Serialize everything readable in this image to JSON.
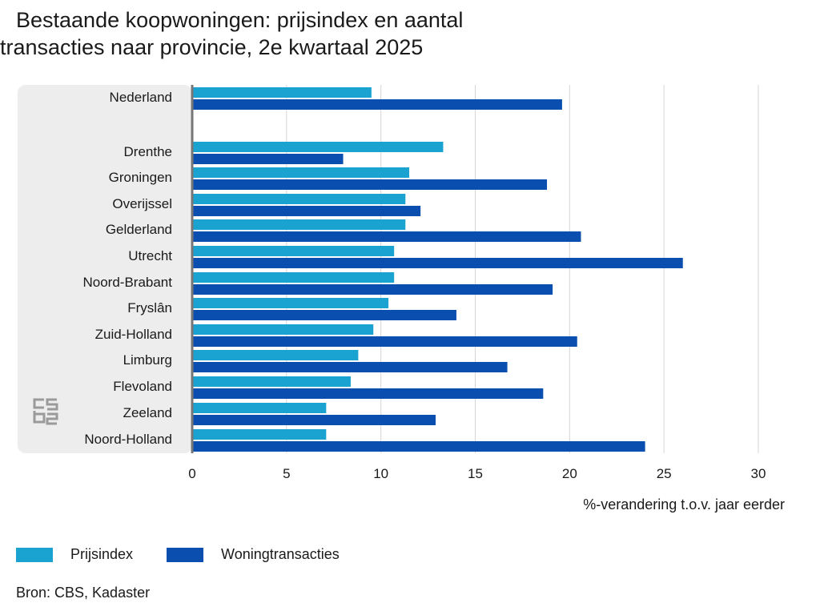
{
  "title": {
    "line1": "Bestaande koopwoningen: prijsindex en aantal",
    "line2": "transacties naar provincie, 2e kwartaal 2025"
  },
  "source": "Bron: CBS, Kadaster",
  "logo_icon": "cbs-logo-icon",
  "colors": {
    "prijsindex": "#1aa3d1",
    "woningtransacties": "#0a4fb0",
    "panel": "#ededed",
    "grid": "#d6d6d6",
    "axis": "#777777"
  },
  "chart_data": {
    "type": "bar",
    "orientation": "horizontal",
    "title": "Bestaande koopwoningen: prijsindex en aantal transacties naar provincie, 2e kwartaal 2025",
    "xlabel": "%-verandering t.o.v. jaar eerder",
    "ylabel": "",
    "xlim": [
      0,
      30
    ],
    "xticks": [
      0,
      5,
      10,
      15,
      20,
      25,
      30
    ],
    "grid": true,
    "legend_position": "bottom-left",
    "categories": [
      "Nederland",
      "Drenthe",
      "Groningen",
      "Overijssel",
      "Gelderland",
      "Utrecht",
      "Noord-Brabant",
      "Fryslân",
      "Zuid-Holland",
      "Limburg",
      "Flevoland",
      "Zeeland",
      "Noord-Holland"
    ],
    "series": [
      {
        "name": "Prijsindex",
        "color": "#1aa3d1",
        "values": [
          9.5,
          13.3,
          11.5,
          11.3,
          11.3,
          10.7,
          10.7,
          10.4,
          9.6,
          8.8,
          8.4,
          7.1,
          7.1
        ]
      },
      {
        "name": "Woningtransacties",
        "color": "#0a4fb0",
        "values": [
          19.6,
          8.0,
          18.8,
          12.1,
          20.6,
          26.0,
          19.1,
          14.0,
          20.4,
          16.7,
          18.6,
          12.9,
          24.0
        ]
      }
    ]
  }
}
